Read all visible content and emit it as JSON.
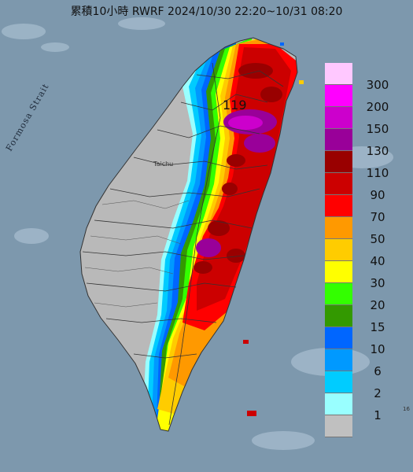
{
  "title": "累積10小時 RWRF 2024/10/30 22:20~10/31 08:20",
  "strait_label": "Formosa Strait",
  "city_label": "Taichu",
  "max_value_label": "119",
  "edge_label": "16",
  "legend": [
    {
      "label": "300",
      "color": "#ffc8ff"
    },
    {
      "label": "200",
      "color": "#ff00ff"
    },
    {
      "label": "150",
      "color": "#cc00cc"
    },
    {
      "label": "130",
      "color": "#990099"
    },
    {
      "label": "110",
      "color": "#990000"
    },
    {
      "label": "90",
      "color": "#cc0000"
    },
    {
      "label": "70",
      "color": "#ff0000"
    },
    {
      "label": "50",
      "color": "#ff9900"
    },
    {
      "label": "40",
      "color": "#ffcc00"
    },
    {
      "label": "30",
      "color": "#ffff00"
    },
    {
      "label": "20",
      "color": "#33ff00"
    },
    {
      "label": "15",
      "color": "#339900"
    },
    {
      "label": "10",
      "color": "#0066ff"
    },
    {
      "label": "6",
      "color": "#0099ff"
    },
    {
      "label": "2",
      "color": "#00ccff"
    },
    {
      "label": "1",
      "color": "#99ffff"
    },
    {
      "label": "",
      "color": "#c0c0c0"
    }
  ],
  "colors": {
    "sea": "#7d98ad",
    "land_dry": "#b9b9b9",
    "county_lines": "#333333"
  }
}
